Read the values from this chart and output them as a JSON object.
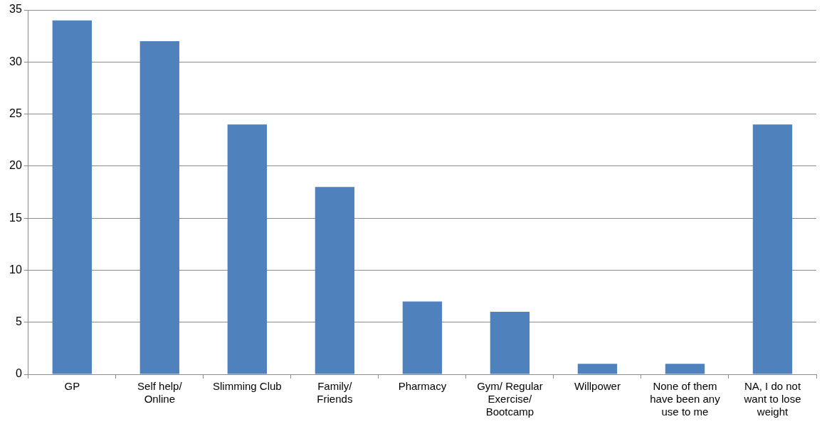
{
  "chart_data": {
    "type": "bar",
    "categories": [
      "GP",
      "Self help/ Online",
      "Slimming Club",
      "Family/ Friends",
      "Pharmacy",
      "Gym/ Regular Exercise/ Bootcamp",
      "Willpower",
      "None of them have been any use to me",
      "NA, I do not want to lose weight"
    ],
    "values": [
      34,
      32,
      24,
      18,
      7,
      6,
      1,
      1,
      24
    ],
    "color": "#4f81bd",
    "ylim": [
      0,
      35
    ],
    "yticks": [
      0,
      5,
      10,
      15,
      20,
      25,
      30,
      35
    ],
    "grid": "y",
    "legend": false
  }
}
